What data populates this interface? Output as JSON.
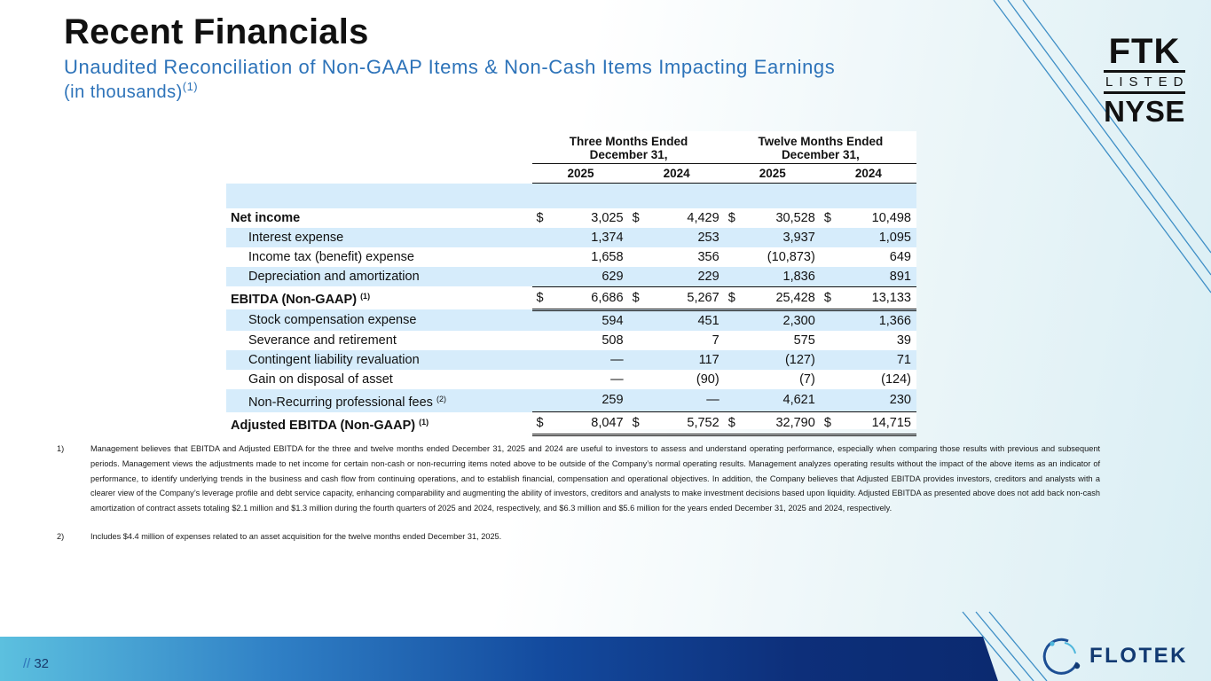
{
  "header": {
    "title": "Recent Financials",
    "subtitle": "Unaudited Reconciliation of Non-GAAP Items & Non-Cash Items Impacting Earnings",
    "units": "(in thousands)",
    "units_note": "(1)"
  },
  "badge": {
    "line1": "FTK",
    "line2": "LISTED",
    "line3": "NYSE"
  },
  "table": {
    "group_headers": [
      "Three Months Ended December 31,",
      "Twelve Months Ended December 31,"
    ],
    "group_line1": [
      "Three Months Ended",
      "Twelve Months Ended"
    ],
    "group_line2": [
      "December 31,",
      "December 31,"
    ],
    "years": [
      "2025",
      "2024",
      "2025",
      "2024"
    ],
    "currency_symbol": "$",
    "rows": [
      {
        "label": "Net income",
        "note": "",
        "values": [
          "3,025",
          "4,429",
          "30,528",
          "10,498"
        ]
      },
      {
        "label": "Interest expense",
        "note": "",
        "values": [
          "1,374",
          "253",
          "3,937",
          "1,095"
        ]
      },
      {
        "label": "Income tax (benefit) expense",
        "note": "",
        "values": [
          "1,658",
          "356",
          "(10,873)",
          "649"
        ]
      },
      {
        "label": "Depreciation and amortization",
        "note": "",
        "values": [
          "629",
          "229",
          "1,836",
          "891"
        ]
      },
      {
        "label": "EBITDA (Non-GAAP)",
        "note": "(1)",
        "values": [
          "6,686",
          "5,267",
          "25,428",
          "13,133"
        ]
      },
      {
        "label": "Stock compensation expense",
        "note": "",
        "values": [
          "594",
          "451",
          "2,300",
          "1,366"
        ]
      },
      {
        "label": "Severance and retirement",
        "note": "",
        "values": [
          "508",
          "7",
          "575",
          "39"
        ]
      },
      {
        "label": "Contingent liability revaluation",
        "note": "",
        "values": [
          "—",
          "117",
          "(127)",
          "71"
        ]
      },
      {
        "label": "Gain on disposal of asset",
        "note": "",
        "values": [
          "—",
          "(90)",
          "(7)",
          "(124)"
        ]
      },
      {
        "label": "Non-Recurring professional fees",
        "note": "(2)",
        "values": [
          "259",
          "—",
          "4,621",
          "230"
        ]
      },
      {
        "label": "Adjusted EBITDA (Non-GAAP)",
        "note": "(1)",
        "values": [
          "8,047",
          "5,752",
          "32,790",
          "14,715"
        ]
      }
    ]
  },
  "footnotes": [
    {
      "num": "1)",
      "text": "Management believes that EBITDA and Adjusted EBITDA for the three and twelve months ended December 31, 2025 and 2024 are useful to investors to assess and understand operating performance, especially when comparing those results with previous and  subsequent periods.  Management views the adjustments made to net income for certain non-cash or non-recurring items noted above to be outside of the Company’s normal operating results.  Management analyzes operating results without the impact of the above items as an indicator of performance, to identify underlying trends in the business and cash flow from continuing operations, and to establish financial, compensation and operational objectives. In addition, the Company believes that Adjusted EBITDA provides investors, creditors and analysts with a clearer view of the Company’s leverage profile and debt service capacity, enhancing comparability and augmenting the ability of investors, creditors and analysts to make investment decisions based upon liquidity. Adjusted EBITDA as presented above does not add back non-cash amortization of contract assets totaling $2.1 million and $1.3 million during the fourth quarters of 2025 and 2024, respectively, and $6.3 million and $5.6 million for the years ended December 31, 2025 and 2024, respectively."
    },
    {
      "num": "2)",
      "text": "Includes $4.4 million of expenses related to an asset acquisition for the twelve months ended December 31, 2025."
    }
  ],
  "footer": {
    "slash": "//",
    "page_number": "32",
    "brand": "FLOTEK"
  },
  "colors": {
    "accent": "#2d73b9",
    "band": "#d6ecfb",
    "brand_dark": "#123a72"
  }
}
